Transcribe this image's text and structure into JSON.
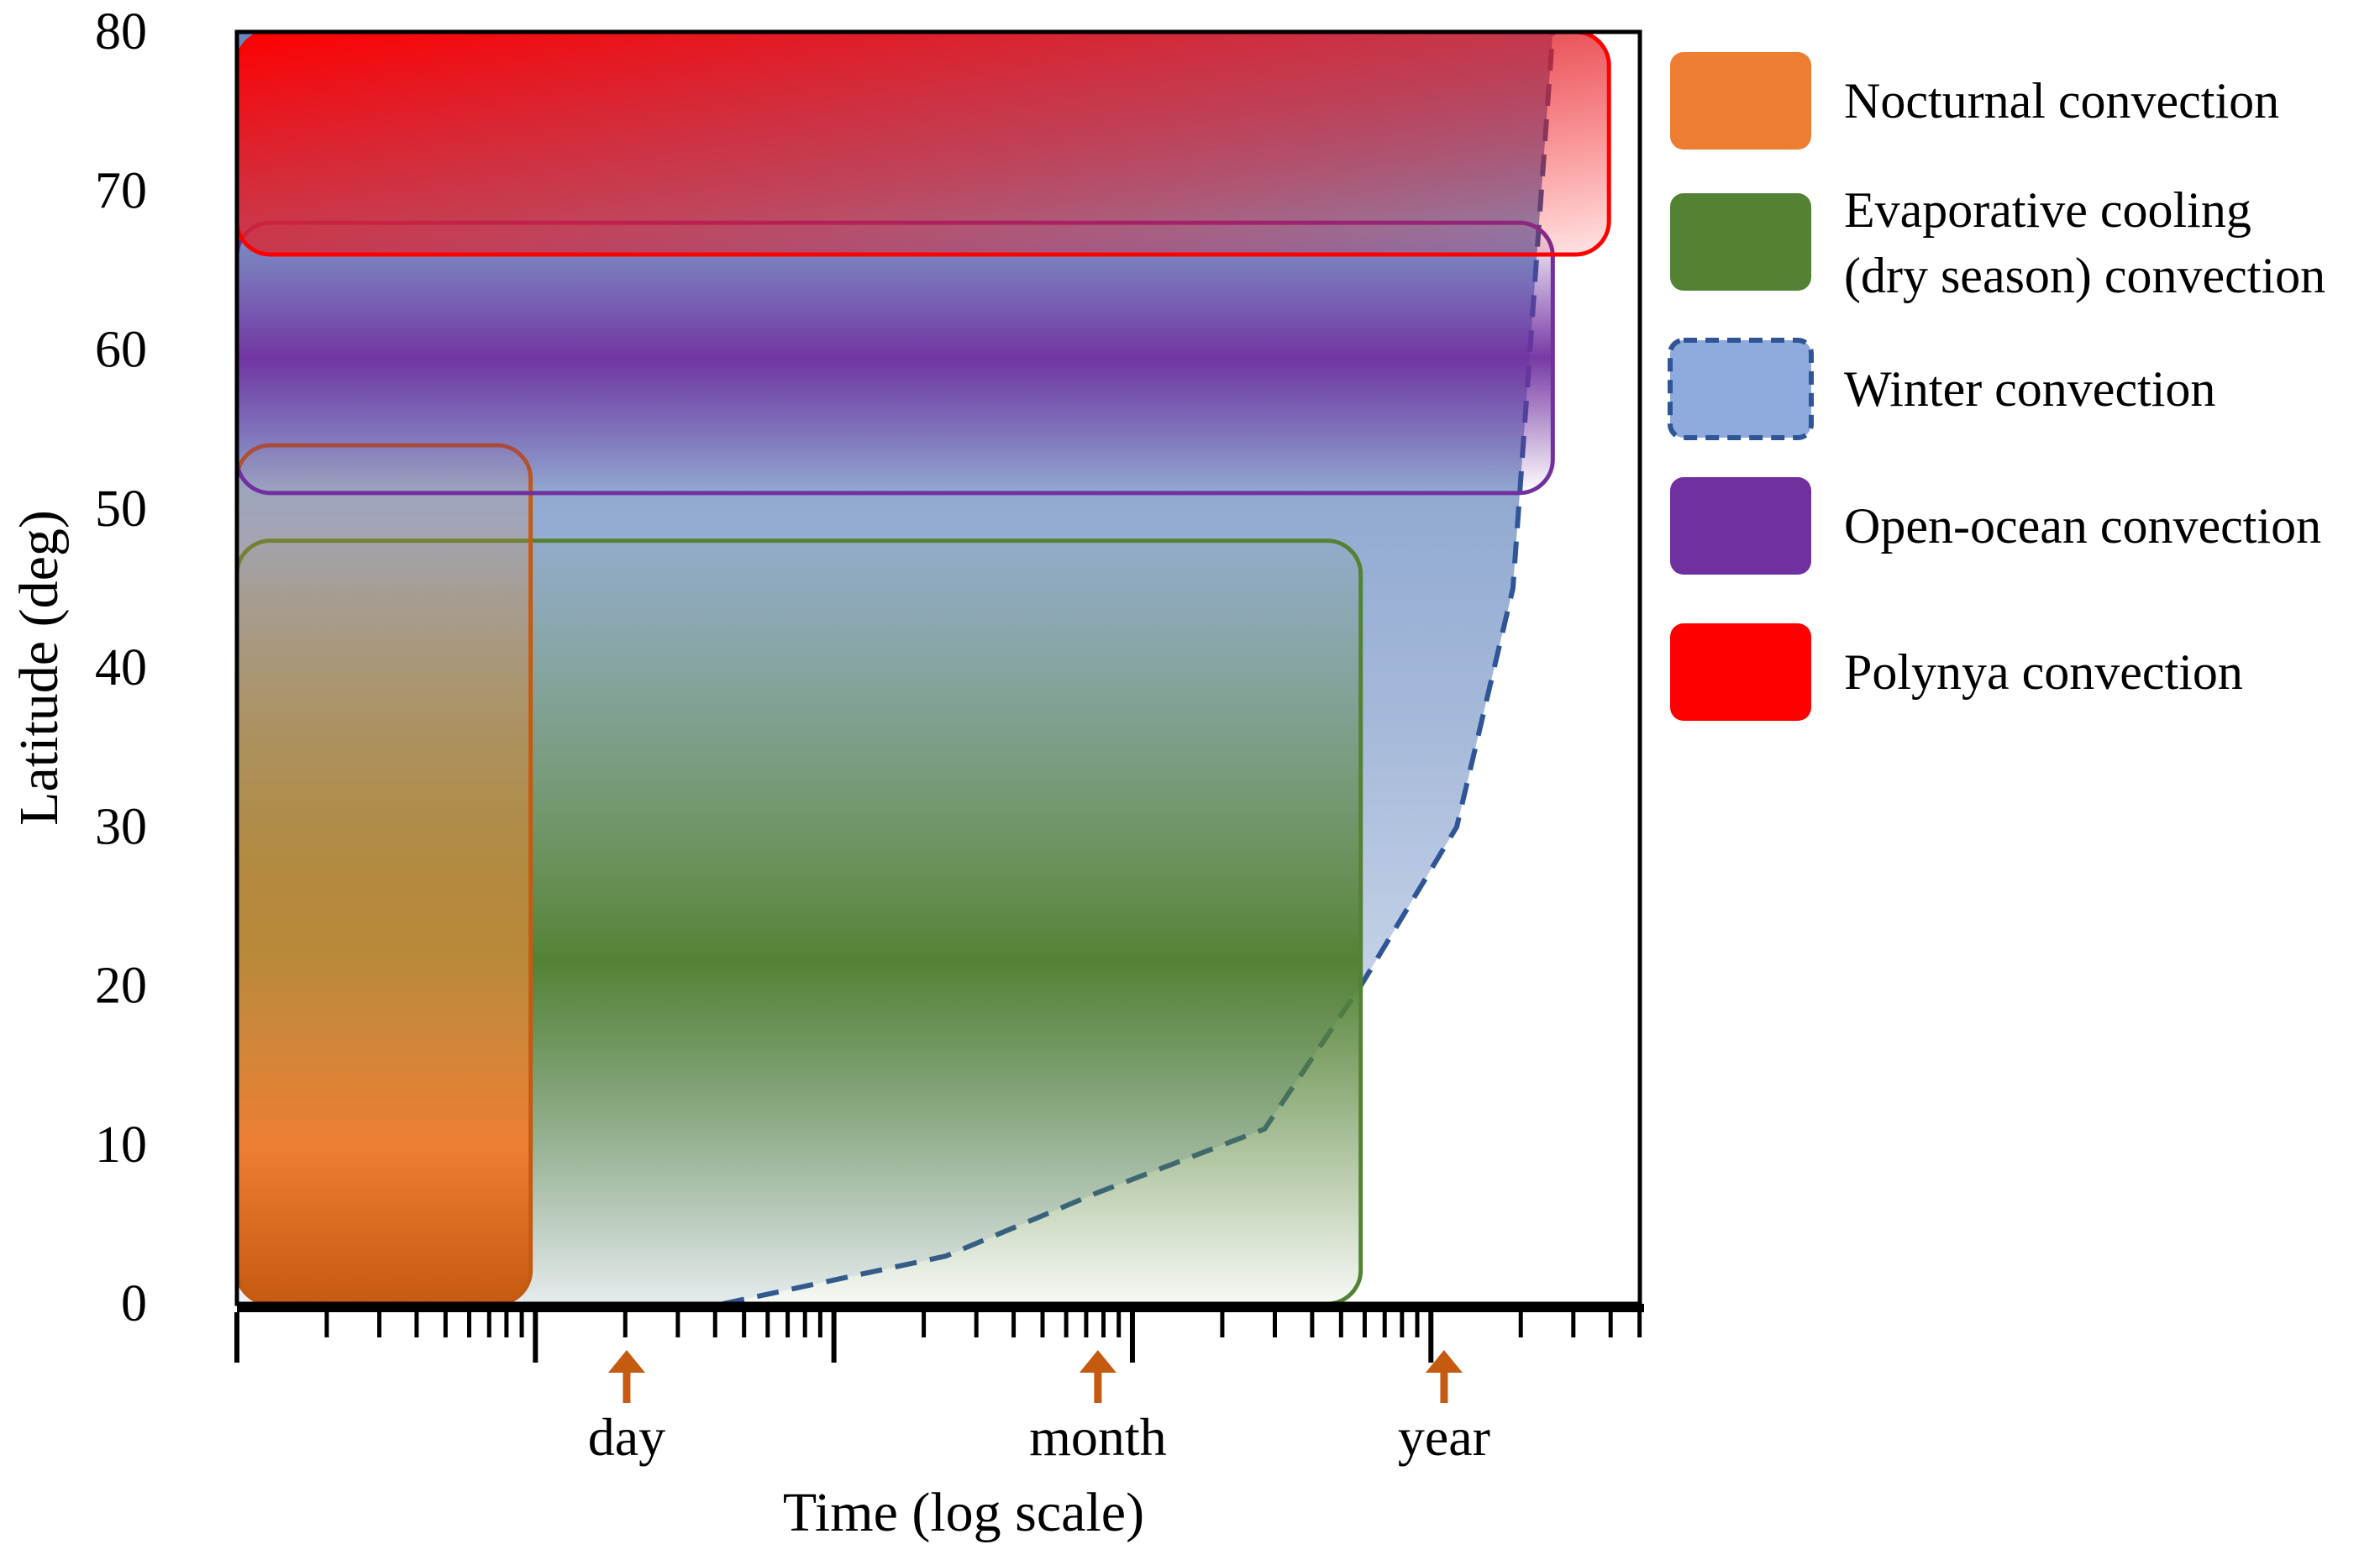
{
  "chart_data": {
    "type": "area",
    "title": "",
    "xlabel": "Time (log scale)",
    "ylabel": "Latitude  (deg)",
    "x_scale": "log",
    "ylim": [
      0,
      80
    ],
    "y_ticks": [
      "0",
      "10",
      "20",
      "30",
      "40",
      "50",
      "60",
      "70",
      "80"
    ],
    "x_markers": [
      "day",
      "month",
      "year"
    ],
    "grid": false,
    "legend_position": "right",
    "series": [
      {
        "name": "Nocturnal convection",
        "color": "#ED7D31",
        "latitude_range": [
          0,
          54
        ],
        "time_range_days": [
          0.06,
          0.5
        ]
      },
      {
        "name": "Evaporative cooling (dry season) convection",
        "legend_lines": [
          "Evaporative cooling",
          "(dry season) convection"
        ],
        "color": "#548235",
        "latitude_range": [
          0,
          48
        ],
        "time_range_days": [
          0.06,
          200
        ]
      },
      {
        "name": "Winter convection",
        "color": "#8FAADC",
        "border_color": "#2F5597",
        "boundary": {
          "time_days": [
            2,
            10,
            30,
            100,
            200,
            400,
            600,
            800
          ],
          "latitude": [
            0,
            3,
            7,
            11,
            20,
            30,
            45,
            80
          ]
        }
      },
      {
        "name": "Open-ocean convection",
        "color": "#7030A0",
        "latitude_range": [
          51,
          68
        ],
        "time_range_days": [
          0.06,
          800
        ]
      },
      {
        "name": "Polynya convection",
        "color": "#FF0000",
        "latitude_range": [
          66,
          80
        ],
        "time_range_days": [
          0.06,
          1200
        ]
      }
    ]
  }
}
